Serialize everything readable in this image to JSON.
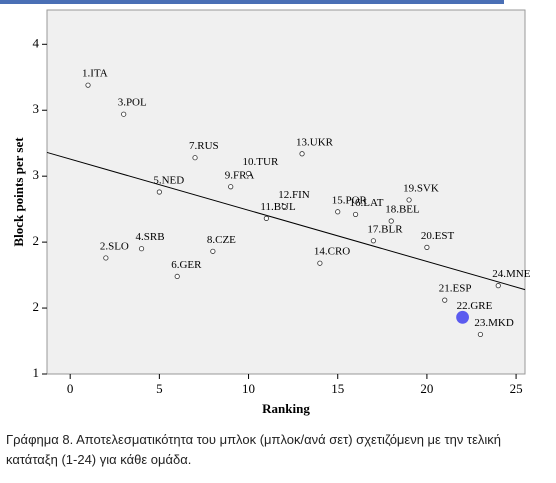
{
  "chart_data": {
    "type": "scatter",
    "x_label": "Ranking",
    "y_label": "Block points per set",
    "xlim": [
      -1.3,
      25.5
    ],
    "ylim": [
      1,
      3.76
    ],
    "xticks": [
      0,
      5,
      10,
      15,
      20,
      25
    ],
    "yticks": [
      1,
      {
        "value": 1.5,
        "label": "2"
      },
      2,
      {
        "value": 2.5,
        "label": "3"
      },
      {
        "value": 3,
        "label": "3"
      },
      {
        "value": 3.5,
        "label": "4"
      }
    ],
    "labels": [
      "1.ITA",
      "2.SLO",
      "3.POL",
      "4.SRB",
      "5.NED",
      "6.GER",
      "7.RUS",
      "8.CZE",
      "9.FRA",
      "10.TUR",
      "11.BUL",
      "12.FIN",
      "13.UKR",
      "14.CRO",
      "15.POR",
      "16.LAT",
      "17.BLR",
      "18.BEL",
      "19.SVK",
      "20.EST",
      "21.ESP",
      "22.GRE",
      "23.MKD",
      "24.MNE"
    ],
    "x": [
      1,
      2,
      3,
      4,
      5,
      6,
      7,
      8,
      9,
      10,
      11,
      12,
      13,
      14,
      15,
      16,
      17,
      18,
      19,
      20,
      21,
      22,
      23,
      24
    ],
    "values": [
      3.19,
      1.88,
      2.97,
      1.95,
      2.38,
      1.74,
      2.64,
      1.93,
      2.42,
      2.52,
      2.18,
      2.27,
      2.67,
      1.84,
      2.23,
      2.21,
      2.01,
      2.16,
      2.32,
      1.96,
      1.56,
      1.43,
      1.3,
      1.67
    ],
    "point_colors": [
      "#ffffff",
      "#ffffff",
      "#ffffff",
      "#ffffff",
      "#ffffff",
      "#ffffff",
      "#ffffff",
      "#ffffff",
      "#ffffff",
      "#ffffff",
      "#ffffff",
      "#ffffff",
      "#ffffff",
      "#ffffff",
      "#ffffff",
      "#ffffff",
      "#ffffff",
      "#ffffff",
      "#ffffff",
      "#ffffff",
      "#ffffff",
      "#5b5bef",
      "#ffffff",
      "#ffffff"
    ],
    "trend_line": {
      "x": [
        -1.3,
        25.5
      ],
      "y": [
        2.68,
        1.64
      ]
    },
    "caption": "Γράφημα 8. Αποτελεσματικότητα του μπλοκ (μπλοκ/ανά σετ) σχετιζόμενη με  την τελική κατάταξη (1-24) για κάθε ομάδα."
  }
}
